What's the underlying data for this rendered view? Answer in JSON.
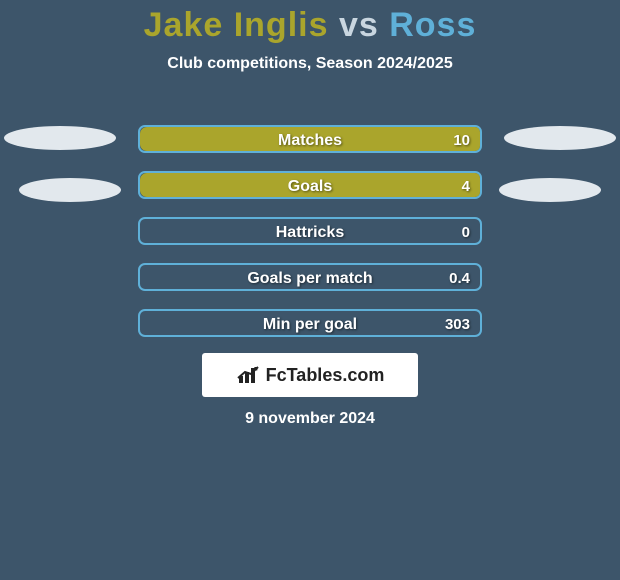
{
  "background_color": "#3d556a",
  "title": {
    "player1": "Jake Inglis",
    "vs": "vs",
    "player2": "Ross",
    "player1_color": "#aaa52c",
    "vs_color": "#c9d6e0",
    "player2_color": "#5fb0d8",
    "fontsize": 34
  },
  "subtitle": "Club competitions, Season 2024/2025",
  "ellipse_color": "#e2e8ed",
  "bars": {
    "border_color": "#5fb0d8",
    "fill_color": "#aaa52c",
    "track_bg": "transparent",
    "border_width": 2,
    "items": [
      {
        "label": "Matches",
        "value": "10",
        "fill": 1.0
      },
      {
        "label": "Goals",
        "value": "4",
        "fill": 1.0
      },
      {
        "label": "Hattricks",
        "value": "0",
        "fill": 0.0
      },
      {
        "label": "Goals per match",
        "value": "0.4",
        "fill": 0.0
      },
      {
        "label": "Min per goal",
        "value": "303",
        "fill": 0.0
      }
    ]
  },
  "brand": {
    "text": "FcTables.com",
    "icon_color": "#222222",
    "bg_color": "#ffffff"
  },
  "date": "9 november 2024"
}
